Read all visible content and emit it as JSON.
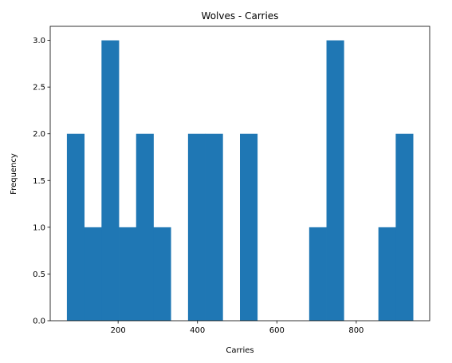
{
  "chart_data": {
    "type": "bar",
    "subtype": "histogram",
    "title": "Wolves - Carries",
    "xlabel": "Carries",
    "ylabel": "Frequency",
    "bar_color": "#1f77b4",
    "bin_start": 71,
    "bin_width": 43.6,
    "counts": [
      2,
      1,
      3,
      1,
      2,
      1,
      0,
      2,
      2,
      0,
      2,
      0,
      0,
      0,
      1,
      3,
      0,
      0,
      1,
      2
    ],
    "xlim": [
      29,
      985
    ],
    "ylim": [
      0,
      3.15
    ],
    "x_ticks": [
      200,
      400,
      600,
      800
    ],
    "x_tick_labels": [
      "200",
      "400",
      "600",
      "800"
    ],
    "y_ticks": [
      0,
      0.5,
      1.0,
      1.5,
      2.0,
      2.5,
      3.0
    ],
    "y_tick_labels": [
      "0.0",
      "0.5",
      "1.0",
      "1.5",
      "2.0",
      "2.5",
      "3.0"
    ],
    "grid": false
  }
}
